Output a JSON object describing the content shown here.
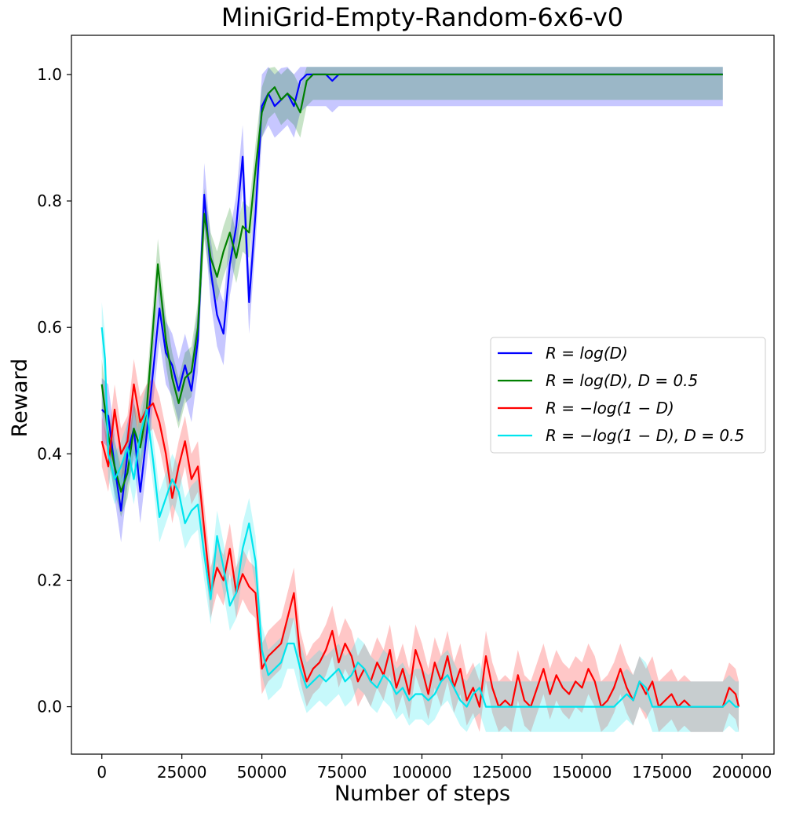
{
  "chart_data": {
    "type": "line",
    "title": "MiniGrid-Empty-Random-6x6-v0",
    "xlabel": "Number of steps",
    "ylabel": "Reward",
    "xlim": [
      -9500,
      210000
    ],
    "ylim": [
      -0.075,
      1.062
    ],
    "xticks": [
      0,
      25000,
      50000,
      75000,
      100000,
      125000,
      150000,
      175000,
      200000
    ],
    "yticks": [
      0.0,
      0.2,
      0.4,
      0.6,
      0.8,
      1.0
    ],
    "xtick_labels": [
      "0",
      "25000",
      "50000",
      "75000",
      "100000",
      "125000",
      "150000",
      "175000",
      "200000"
    ],
    "ytick_labels": [
      "0.0",
      "0.2",
      "0.4",
      "0.6",
      "0.8",
      "1.0"
    ],
    "legend_position": "center-right",
    "grid": false,
    "series": [
      {
        "name": "R = log(D)",
        "color": "#0000ff",
        "band": 0.05,
        "points": [
          [
            0,
            0.47
          ],
          [
            2000,
            0.46
          ],
          [
            4000,
            0.38
          ],
          [
            6000,
            0.31
          ],
          [
            8000,
            0.4
          ],
          [
            10000,
            0.44
          ],
          [
            12000,
            0.34
          ],
          [
            14000,
            0.43
          ],
          [
            16000,
            0.53
          ],
          [
            18000,
            0.63
          ],
          [
            20000,
            0.56
          ],
          [
            22000,
            0.54
          ],
          [
            24000,
            0.5
          ],
          [
            26000,
            0.54
          ],
          [
            28000,
            0.5
          ],
          [
            30000,
            0.58
          ],
          [
            32000,
            0.81
          ],
          [
            34000,
            0.69
          ],
          [
            36000,
            0.62
          ],
          [
            38000,
            0.59
          ],
          [
            40000,
            0.7
          ],
          [
            42000,
            0.76
          ],
          [
            44000,
            0.87
          ],
          [
            46000,
            0.64
          ],
          [
            48000,
            0.78
          ],
          [
            50000,
            0.95
          ],
          [
            52000,
            0.97
          ],
          [
            54000,
            0.95
          ],
          [
            56000,
            0.96
          ],
          [
            58000,
            0.97
          ],
          [
            60000,
            0.95
          ],
          [
            62000,
            0.99
          ],
          [
            64000,
            1.0
          ],
          [
            66000,
            1.0
          ],
          [
            70000,
            1.0
          ],
          [
            72000,
            0.99
          ],
          [
            74000,
            1.0
          ],
          [
            80000,
            1.0
          ],
          [
            100000,
            1.0
          ],
          [
            150000,
            1.0
          ],
          [
            194000,
            1.0
          ]
        ]
      },
      {
        "name": "R = log(D), D = 0.5",
        "color": "#008000",
        "band": 0.04,
        "points": [
          [
            0,
            0.51
          ],
          [
            2000,
            0.43
          ],
          [
            4000,
            0.38
          ],
          [
            6000,
            0.34
          ],
          [
            8000,
            0.37
          ],
          [
            10000,
            0.44
          ],
          [
            12000,
            0.41
          ],
          [
            14000,
            0.47
          ],
          [
            16000,
            0.6
          ],
          [
            17500,
            0.7
          ],
          [
            20000,
            0.58
          ],
          [
            22000,
            0.52
          ],
          [
            24000,
            0.48
          ],
          [
            26000,
            0.52
          ],
          [
            28000,
            0.53
          ],
          [
            30000,
            0.6
          ],
          [
            32000,
            0.78
          ],
          [
            34000,
            0.71
          ],
          [
            36000,
            0.68
          ],
          [
            38000,
            0.72
          ],
          [
            40000,
            0.75
          ],
          [
            42000,
            0.71
          ],
          [
            44000,
            0.76
          ],
          [
            46000,
            0.75
          ],
          [
            48000,
            0.85
          ],
          [
            50000,
            0.94
          ],
          [
            52000,
            0.97
          ],
          [
            54000,
            0.98
          ],
          [
            56000,
            0.96
          ],
          [
            58000,
            0.97
          ],
          [
            60000,
            0.96
          ],
          [
            62000,
            0.94
          ],
          [
            64000,
            0.99
          ],
          [
            66000,
            1.0
          ],
          [
            80000,
            1.0
          ],
          [
            100000,
            1.0
          ],
          [
            150000,
            1.0
          ],
          [
            194000,
            1.0
          ]
        ]
      },
      {
        "name": "R = −log(1 − D)",
        "color": "#ff0000",
        "band": 0.04,
        "points": [
          [
            0,
            0.42
          ],
          [
            2000,
            0.38
          ],
          [
            4000,
            0.47
          ],
          [
            6000,
            0.4
          ],
          [
            8000,
            0.42
          ],
          [
            10000,
            0.51
          ],
          [
            12000,
            0.45
          ],
          [
            14000,
            0.47
          ],
          [
            16000,
            0.48
          ],
          [
            18000,
            0.45
          ],
          [
            20000,
            0.4
          ],
          [
            22000,
            0.33
          ],
          [
            24000,
            0.38
          ],
          [
            26000,
            0.42
          ],
          [
            28000,
            0.36
          ],
          [
            30000,
            0.38
          ],
          [
            32000,
            0.28
          ],
          [
            34000,
            0.18
          ],
          [
            36000,
            0.22
          ],
          [
            38000,
            0.2
          ],
          [
            40000,
            0.25
          ],
          [
            42000,
            0.18
          ],
          [
            44000,
            0.21
          ],
          [
            46000,
            0.19
          ],
          [
            48000,
            0.18
          ],
          [
            50000,
            0.06
          ],
          [
            52000,
            0.08
          ],
          [
            54000,
            0.09
          ],
          [
            56000,
            0.1
          ],
          [
            58000,
            0.14
          ],
          [
            60000,
            0.18
          ],
          [
            62000,
            0.08
          ],
          [
            64000,
            0.04
          ],
          [
            66000,
            0.06
          ],
          [
            68000,
            0.07
          ],
          [
            70000,
            0.09
          ],
          [
            72000,
            0.12
          ],
          [
            74000,
            0.07
          ],
          [
            76000,
            0.1
          ],
          [
            78000,
            0.08
          ],
          [
            80000,
            0.04
          ],
          [
            82000,
            0.06
          ],
          [
            84000,
            0.04
          ],
          [
            86000,
            0.07
          ],
          [
            88000,
            0.05
          ],
          [
            90000,
            0.09
          ],
          [
            92000,
            0.03
          ],
          [
            94000,
            0.06
          ],
          [
            96000,
            0.02
          ],
          [
            98000,
            0.09
          ],
          [
            100000,
            0.06
          ],
          [
            102000,
            0.02
          ],
          [
            104000,
            0.07
          ],
          [
            106000,
            0.04
          ],
          [
            108000,
            0.08
          ],
          [
            110000,
            0.03
          ],
          [
            112000,
            0.06
          ],
          [
            114000,
            0.01
          ],
          [
            116000,
            0.03
          ],
          [
            118000,
            0.0
          ],
          [
            120000,
            0.08
          ],
          [
            122000,
            0.03
          ],
          [
            124000,
            0.0
          ],
          [
            126000,
            0.01
          ],
          [
            128000,
            0.0
          ],
          [
            130000,
            0.05
          ],
          [
            132000,
            0.01
          ],
          [
            134000,
            0.0
          ],
          [
            136000,
            0.03
          ],
          [
            138000,
            0.06
          ],
          [
            140000,
            0.02
          ],
          [
            142000,
            0.05
          ],
          [
            144000,
            0.03
          ],
          [
            146000,
            0.02
          ],
          [
            148000,
            0.04
          ],
          [
            150000,
            0.03
          ],
          [
            152000,
            0.06
          ],
          [
            154000,
            0.04
          ],
          [
            156000,
            0.0
          ],
          [
            158000,
            0.01
          ],
          [
            160000,
            0.03
          ],
          [
            162000,
            0.06
          ],
          [
            164000,
            0.03
          ],
          [
            166000,
            0.01
          ],
          [
            168000,
            0.04
          ],
          [
            170000,
            0.02
          ],
          [
            172000,
            0.04
          ],
          [
            174000,
            0.0
          ],
          [
            176000,
            0.01
          ],
          [
            178000,
            0.02
          ],
          [
            180000,
            0.0
          ],
          [
            182000,
            0.01
          ],
          [
            184000,
            0.0
          ],
          [
            186000,
            0.0
          ],
          [
            188000,
            0.0
          ],
          [
            190000,
            0.0
          ],
          [
            192000,
            0.0
          ],
          [
            194000,
            0.0
          ],
          [
            196000,
            0.03
          ],
          [
            198000,
            0.02
          ],
          [
            199000,
            0.0
          ]
        ]
      },
      {
        "name": "R = −log(1 − D), D = 0.5",
        "color": "#00e5ee",
        "band": 0.04,
        "points": [
          [
            0,
            0.6
          ],
          [
            1000,
            0.55
          ],
          [
            2000,
            0.4
          ],
          [
            4000,
            0.36
          ],
          [
            6000,
            0.38
          ],
          [
            8000,
            0.41
          ],
          [
            10000,
            0.36
          ],
          [
            12000,
            0.43
          ],
          [
            14000,
            0.47
          ],
          [
            16000,
            0.39
          ],
          [
            18000,
            0.3
          ],
          [
            20000,
            0.33
          ],
          [
            22000,
            0.36
          ],
          [
            24000,
            0.34
          ],
          [
            26000,
            0.29
          ],
          [
            28000,
            0.31
          ],
          [
            30000,
            0.32
          ],
          [
            32000,
            0.24
          ],
          [
            34000,
            0.17
          ],
          [
            36000,
            0.27
          ],
          [
            38000,
            0.22
          ],
          [
            40000,
            0.16
          ],
          [
            42000,
            0.18
          ],
          [
            44000,
            0.25
          ],
          [
            46000,
            0.29
          ],
          [
            48000,
            0.23
          ],
          [
            50000,
            0.09
          ],
          [
            52000,
            0.05
          ],
          [
            54000,
            0.06
          ],
          [
            56000,
            0.07
          ],
          [
            58000,
            0.1
          ],
          [
            60000,
            0.1
          ],
          [
            62000,
            0.06
          ],
          [
            64000,
            0.03
          ],
          [
            66000,
            0.04
          ],
          [
            68000,
            0.05
          ],
          [
            70000,
            0.04
          ],
          [
            72000,
            0.05
          ],
          [
            74000,
            0.06
          ],
          [
            76000,
            0.04
          ],
          [
            78000,
            0.05
          ],
          [
            80000,
            0.07
          ],
          [
            82000,
            0.06
          ],
          [
            84000,
            0.04
          ],
          [
            86000,
            0.03
          ],
          [
            88000,
            0.05
          ],
          [
            90000,
            0.04
          ],
          [
            92000,
            0.02
          ],
          [
            94000,
            0.03
          ],
          [
            96000,
            0.01
          ],
          [
            98000,
            0.02
          ],
          [
            100000,
            0.02
          ],
          [
            102000,
            0.01
          ],
          [
            104000,
            0.02
          ],
          [
            106000,
            0.04
          ],
          [
            108000,
            0.05
          ],
          [
            110000,
            0.03
          ],
          [
            112000,
            0.01
          ],
          [
            114000,
            0.0
          ],
          [
            116000,
            0.02
          ],
          [
            118000,
            0.03
          ],
          [
            120000,
            0.0
          ],
          [
            130000,
            0.0
          ],
          [
            140000,
            0.0
          ],
          [
            150000,
            0.0
          ],
          [
            160000,
            0.0
          ],
          [
            164000,
            0.02
          ],
          [
            166000,
            0.01
          ],
          [
            168000,
            0.04
          ],
          [
            170000,
            0.03
          ],
          [
            172000,
            0.0
          ],
          [
            180000,
            0.0
          ],
          [
            190000,
            0.0
          ],
          [
            194000,
            0.0
          ],
          [
            196000,
            0.01
          ],
          [
            198000,
            0.0
          ],
          [
            199000,
            0.0
          ]
        ]
      }
    ]
  }
}
